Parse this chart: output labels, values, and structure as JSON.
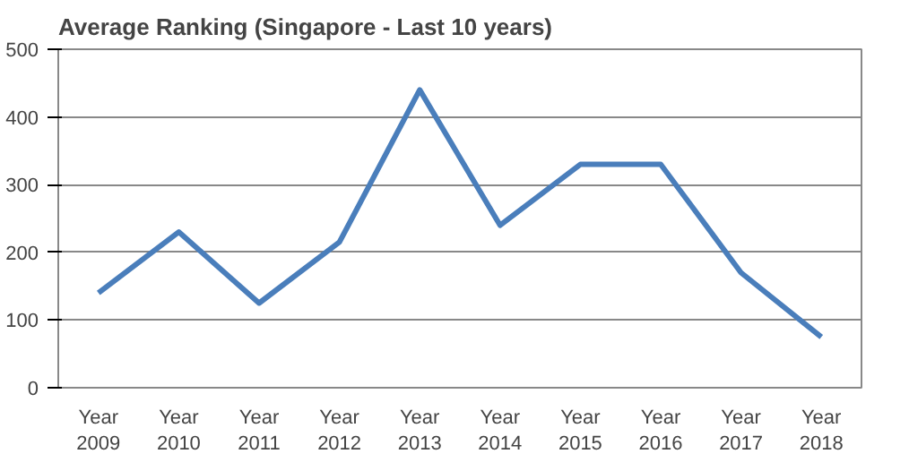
{
  "chart_data": {
    "type": "line",
    "title": "Average Ranking (Singapore - Last 10 years)",
    "categories": [
      "Year 2009",
      "Year 2010",
      "Year 2011",
      "Year 2012",
      "Year 2013",
      "Year 2014",
      "Year 2015",
      "Year 2016",
      "Year 2017",
      "Year 2018"
    ],
    "series": [
      {
        "color": "#4a7ebb",
        "values": [
          140,
          230,
          125,
          215,
          440,
          240,
          330,
          330,
          170,
          75
        ]
      }
    ],
    "ylim": [
      0,
      500
    ],
    "yticks": [
      0,
      100,
      200,
      300,
      400,
      500
    ],
    "grid": "y",
    "marker": "none",
    "line_style": "solid"
  }
}
